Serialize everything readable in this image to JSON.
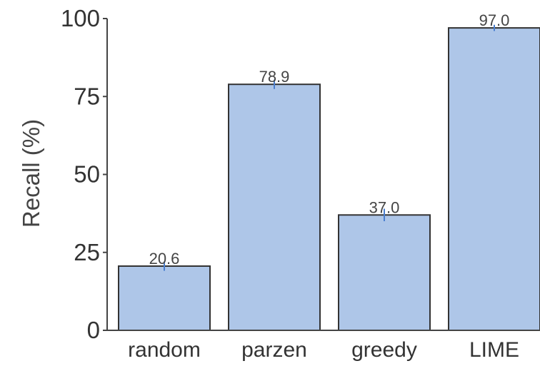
{
  "chart_data": {
    "type": "bar",
    "categories": [
      "random",
      "parzen",
      "greedy",
      "LIME"
    ],
    "values": [
      20.6,
      78.9,
      37.0,
      97.0
    ],
    "value_labels": [
      "20.6",
      "78.9",
      "37.0",
      "97.0"
    ],
    "errors": [
      1.5,
      1.5,
      2.0,
      1.0
    ],
    "title": "",
    "xlabel": "",
    "ylabel": "Recall (%)",
    "ylim": [
      0,
      100
    ],
    "yticks": [
      0,
      25,
      50,
      75,
      100
    ],
    "ytick_labels": [
      "0",
      "25",
      "50",
      "75",
      "100"
    ],
    "bar_color": "#aec6e8",
    "error_color": "#4a7fd0",
    "grid": false,
    "legend": "none"
  }
}
